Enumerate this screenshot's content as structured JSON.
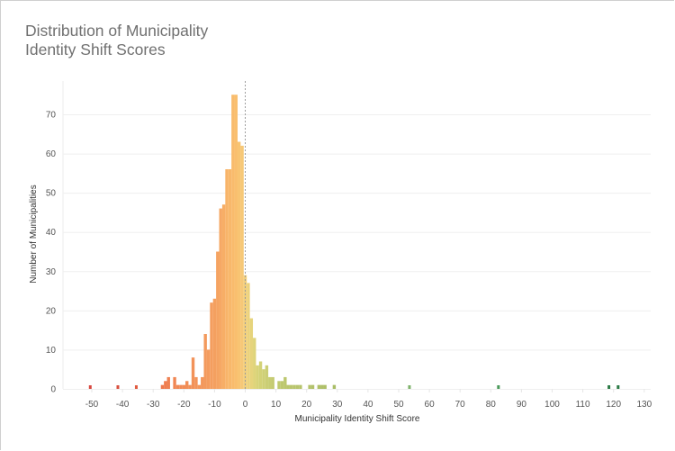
{
  "title_line1": "Distribution of Municipality",
  "title_line2": "Identity Shift Scores",
  "chart_data": {
    "type": "bar",
    "subtype": "histogram",
    "title": "Distribution of Municipality Identity Shift Scores",
    "xlabel": "Municipality Identity Shift Score",
    "ylabel": "Number of Municipalities",
    "xlim": [
      -55,
      130
    ],
    "ylim": [
      0,
      75
    ],
    "xticks": [
      -50,
      -40,
      -30,
      -20,
      -10,
      0,
      10,
      20,
      30,
      40,
      50,
      60,
      70,
      80,
      90,
      100,
      110,
      120,
      130
    ],
    "yticks": [
      0,
      10,
      20,
      30,
      40,
      50,
      60,
      70
    ],
    "grid": "horizontal",
    "reference_line": {
      "x": 0,
      "style": "dashed",
      "color": "#9e9e9e"
    },
    "bin_width": 1,
    "bins": [
      {
        "x": -50.5,
        "count": 1,
        "color": "#d8473f"
      },
      {
        "x": -41.5,
        "count": 1,
        "color": "#d9503f"
      },
      {
        "x": -35.5,
        "count": 1,
        "color": "#e05a3f"
      },
      {
        "x": -27,
        "count": 1,
        "color": "#ee7a4e"
      },
      {
        "x": -26,
        "count": 2,
        "color": "#ef7e50"
      },
      {
        "x": -25,
        "count": 3,
        "color": "#ef8152"
      },
      {
        "x": -23,
        "count": 3,
        "color": "#f08653"
      },
      {
        "x": -22,
        "count": 1,
        "color": "#f08854"
      },
      {
        "x": -21,
        "count": 1,
        "color": "#f18a55"
      },
      {
        "x": -20,
        "count": 1,
        "color": "#f18c56"
      },
      {
        "x": -19,
        "count": 2,
        "color": "#f18e57"
      },
      {
        "x": -18,
        "count": 1,
        "color": "#f29058"
      },
      {
        "x": -17,
        "count": 8,
        "color": "#f29259"
      },
      {
        "x": -16,
        "count": 3,
        "color": "#f2945a"
      },
      {
        "x": -15,
        "count": 1,
        "color": "#f3965b"
      },
      {
        "x": -14,
        "count": 3,
        "color": "#f3985c"
      },
      {
        "x": -13,
        "count": 14,
        "color": "#f39a5d"
      },
      {
        "x": -12,
        "count": 10,
        "color": "#f49c5e"
      },
      {
        "x": -11,
        "count": 22,
        "color": "#f49e5f"
      },
      {
        "x": -10,
        "count": 23,
        "color": "#f4a060"
      },
      {
        "x": -9,
        "count": 35,
        "color": "#f5a362"
      },
      {
        "x": -8,
        "count": 46,
        "color": "#f6a864"
      },
      {
        "x": -7,
        "count": 47,
        "color": "#f7ae66"
      },
      {
        "x": -6,
        "count": 56,
        "color": "#f8b469"
      },
      {
        "x": -5,
        "count": 56,
        "color": "#f8b86b"
      },
      {
        "x": -4,
        "count": 75,
        "color": "#f9bb6c"
      },
      {
        "x": -3,
        "count": 75,
        "color": "#f9bf6e"
      },
      {
        "x": -2,
        "count": 63,
        "color": "#f8c472"
      },
      {
        "x": -1,
        "count": 62,
        "color": "#f6c877"
      },
      {
        "x": 0,
        "count": 29,
        "color": "#f1cf7c"
      },
      {
        "x": 1,
        "count": 27,
        "color": "#ecd27c"
      },
      {
        "x": 2,
        "count": 18,
        "color": "#e6d47c"
      },
      {
        "x": 3,
        "count": 13,
        "color": "#dfd47a"
      },
      {
        "x": 4,
        "count": 6,
        "color": "#d8d378"
      },
      {
        "x": 5,
        "count": 7,
        "color": "#d3d277"
      },
      {
        "x": 6,
        "count": 5,
        "color": "#cfd076"
      },
      {
        "x": 7,
        "count": 6,
        "color": "#cbce75"
      },
      {
        "x": 8,
        "count": 3,
        "color": "#c8cd74"
      },
      {
        "x": 9,
        "count": 3,
        "color": "#c5cb73"
      },
      {
        "x": 11,
        "count": 2,
        "color": "#bfc970"
      },
      {
        "x": 12,
        "count": 2,
        "color": "#bdc86f"
      },
      {
        "x": 13,
        "count": 3,
        "color": "#bcc76e"
      },
      {
        "x": 14,
        "count": 1,
        "color": "#bac66d"
      },
      {
        "x": 15,
        "count": 1,
        "color": "#b9c56d"
      },
      {
        "x": 16,
        "count": 1,
        "color": "#b8c46c"
      },
      {
        "x": 17,
        "count": 1,
        "color": "#b7c46c"
      },
      {
        "x": 18,
        "count": 1,
        "color": "#b6c36b"
      },
      {
        "x": 21,
        "count": 1,
        "color": "#b3c26a"
      },
      {
        "x": 22,
        "count": 1,
        "color": "#b2c16a"
      },
      {
        "x": 24,
        "count": 1,
        "color": "#b0c069"
      },
      {
        "x": 25,
        "count": 1,
        "color": "#afc069"
      },
      {
        "x": 26,
        "count": 1,
        "color": "#aebf68"
      },
      {
        "x": 29,
        "count": 1,
        "color": "#a9bd66"
      },
      {
        "x": 53.5,
        "count": 1,
        "color": "#7fb36b"
      },
      {
        "x": 82.5,
        "count": 1,
        "color": "#4a9a5a"
      },
      {
        "x": 118.5,
        "count": 1,
        "color": "#2b7a45"
      },
      {
        "x": 121.5,
        "count": 1,
        "color": "#2b7a45"
      }
    ]
  }
}
